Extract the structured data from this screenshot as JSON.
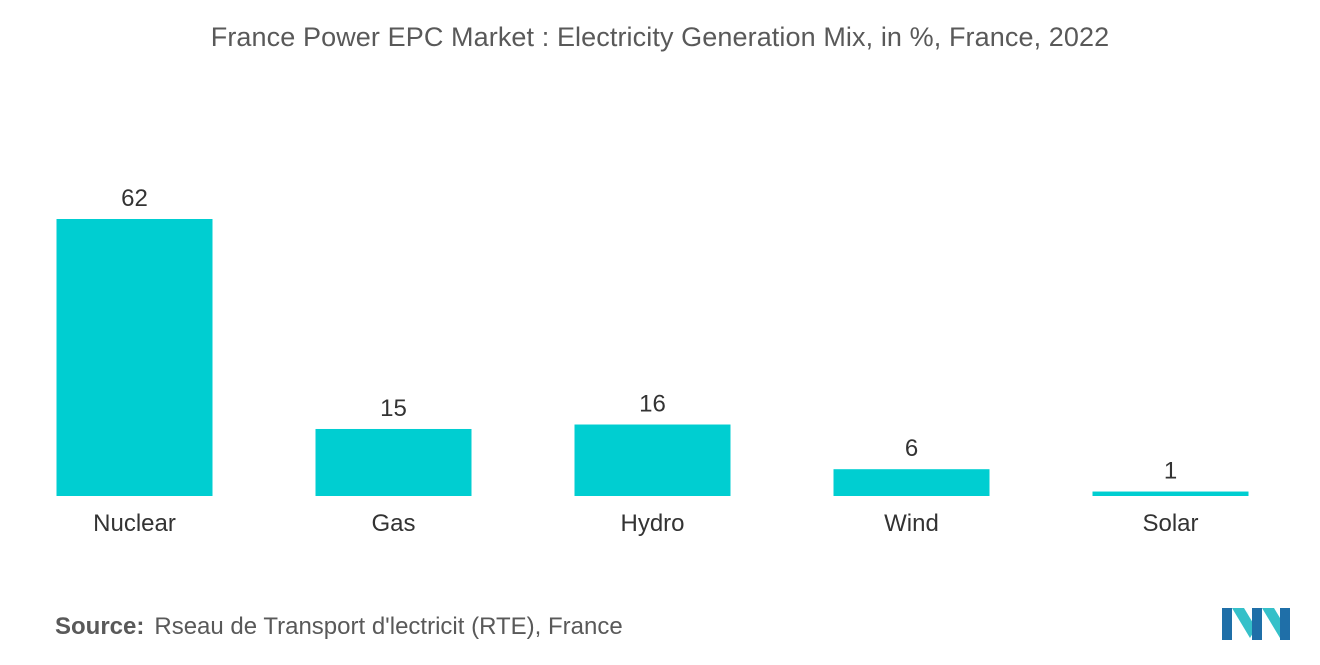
{
  "chart_data": {
    "type": "bar",
    "title": "France Power EPC Market : Electricity Generation Mix, in %, France, 2022",
    "categories": [
      "Nuclear",
      "Gas",
      "Hydro",
      "Wind",
      "Solar"
    ],
    "values": [
      62,
      15,
      16,
      6,
      1
    ],
    "xlabel": "",
    "ylabel": "",
    "ylim": [
      0,
      62
    ],
    "grid": false,
    "legend": "none",
    "bar_color": "#00CED1"
  },
  "source": {
    "label": "Source:",
    "text": "Rseau de Transport d'lectricit (RTE), France"
  },
  "logo": {
    "icon": "mordor-intelligence-logo-icon",
    "colors": [
      "#1f6fa8",
      "#35c0c9"
    ]
  }
}
